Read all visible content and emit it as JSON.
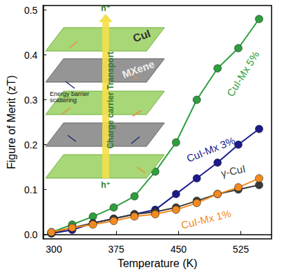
{
  "chart_data": {
    "type": "line",
    "x_label": "Temperature (K)",
    "y_label": "Figure of Merit (zT)",
    "xlim": [
      287,
      562
    ],
    "xticks": [
      300,
      375,
      450,
      525
    ],
    "ylim": [
      -0.01,
      0.51
    ],
    "yticks": [
      {
        "value": 0,
        "label": "0.0"
      },
      0.1,
      0.2,
      0.3,
      0.4,
      0.5
    ],
    "grid": false,
    "marker": "circle",
    "x": [
      297,
      322,
      347,
      372,
      397,
      422,
      447,
      472,
      497,
      522,
      547
    ],
    "series": [
      {
        "name": "CuI-Mx 5%",
        "color": "#2e9e3e",
        "values": [
          0.005,
          0.022,
          0.04,
          0.06,
          0.085,
          0.14,
          0.205,
          0.3,
          0.37,
          0.415,
          0.48
        ]
      },
      {
        "name": "CuI-Mx 3%",
        "color": "#1a1a8c",
        "values": [
          0.002,
          0.01,
          0.025,
          0.035,
          0.045,
          0.055,
          0.09,
          0.125,
          0.16,
          0.2,
          0.235
        ]
      },
      {
        "name": "γ-CuI",
        "color": "#3a3a3a",
        "values": [
          0.003,
          0.015,
          0.025,
          0.035,
          0.045,
          0.05,
          0.06,
          0.075,
          0.09,
          0.1,
          0.11
        ]
      },
      {
        "name": "CuI-Mx 1%",
        "color": "#f28a1e",
        "values": [
          0.005,
          0.015,
          0.022,
          0.03,
          0.04,
          0.045,
          0.055,
          0.07,
          0.09,
          0.105,
          0.125
        ]
      }
    ],
    "annotations": [
      "CuI",
      "MXene",
      "Energy barrier scattering",
      "Charge carrier Transport",
      "h⁺",
      "h⁺"
    ]
  }
}
